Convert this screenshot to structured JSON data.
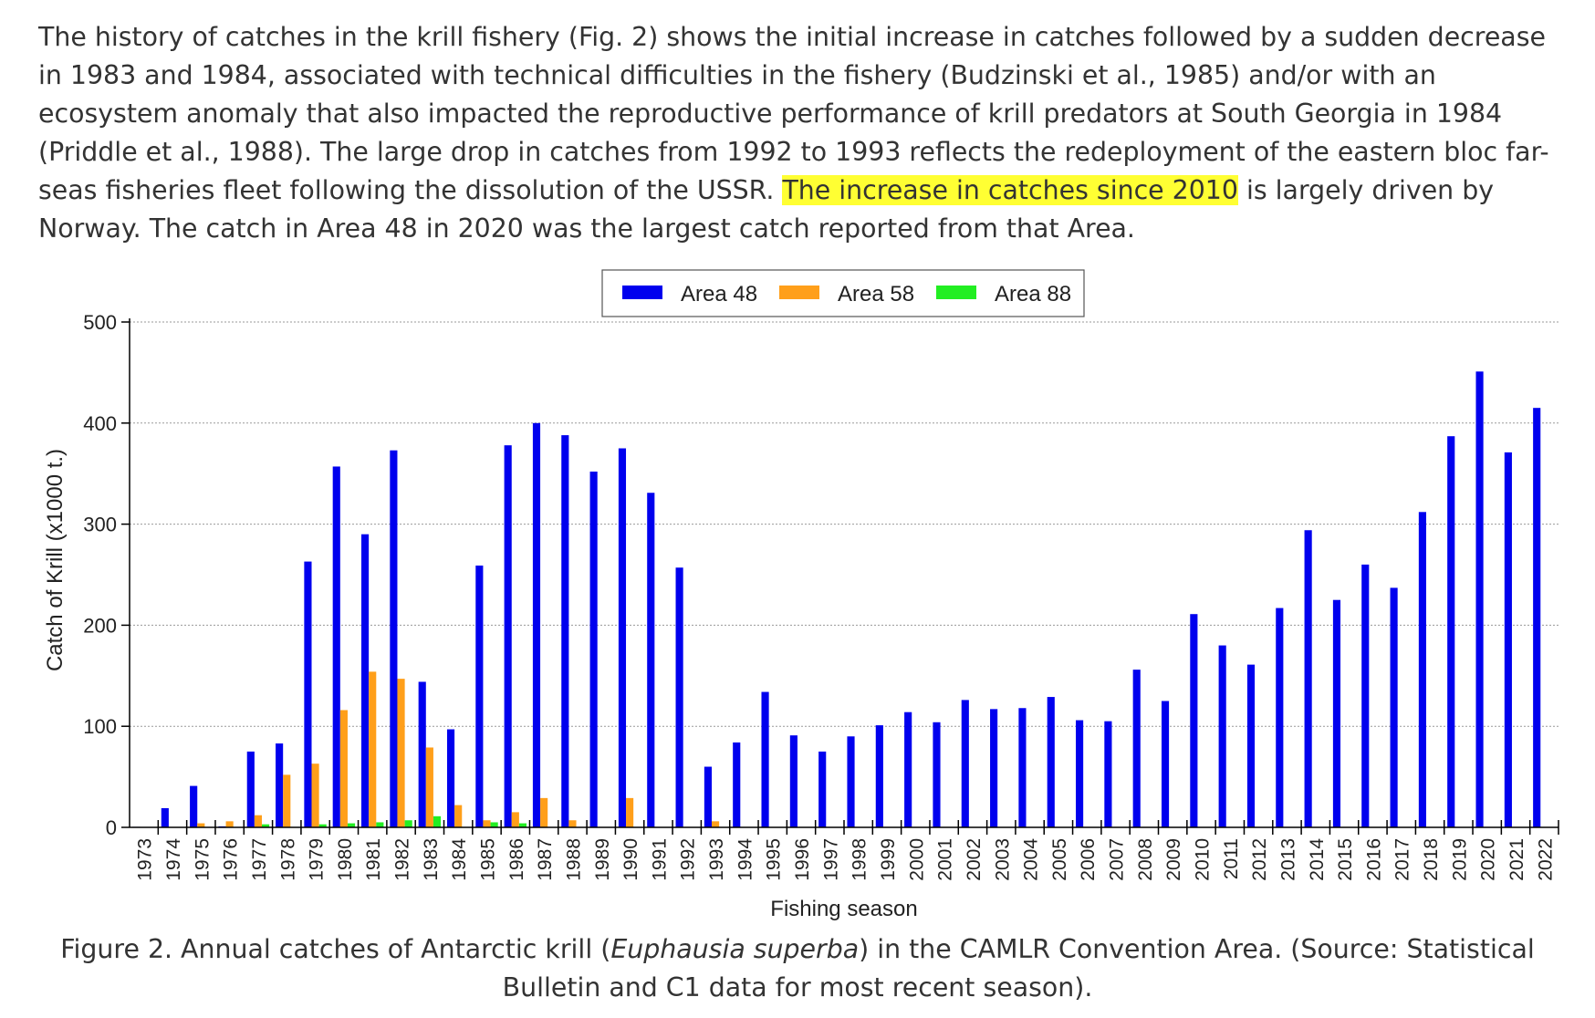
{
  "paragraph": {
    "seg1": "The history of catches in the krill fishery (Fig. 2) shows the initial increase in catches followed by a sudden decrease in 1983 and 1984, associated with technical difficulties in the fishery (Budzinski et al., 1985) and/or with an ecosystem anomaly that also impacted the reproductive performance of krill predators at South Georgia in 1984 (Priddle et al., 1988). The large drop in catches from 1992 to 1993 reflects the redeployment of the eastern bloc far-seas fisheries fleet following the dissolution of the USSR. ",
    "highlight": "The increase in catches since 2010",
    "seg2": " is largely driven by Norway. The catch in Area 48 in 2020 was the largest catch reported from that Area.",
    "highlight_color": "#ffff33"
  },
  "caption": {
    "prefix": "Figure 2. Annual catches of Antarctic krill (",
    "species": "Euphausia superba",
    "suffix": ") in the CAMLR Convention Area. (Source: Statistical Bulletin and C1 data for most recent season)."
  },
  "chart_data": {
    "type": "bar",
    "xlabel": "Fishing season",
    "ylabel": "Catch of Krill (x1000 t.)",
    "ylim": [
      0,
      500
    ],
    "yticks": [
      0,
      100,
      200,
      300,
      400,
      500
    ],
    "grid": true,
    "legend_position": "top-center",
    "categories": [
      "1973",
      "1974",
      "1975",
      "1976",
      "1977",
      "1978",
      "1979",
      "1980",
      "1981",
      "1982",
      "1983",
      "1984",
      "1985",
      "1986",
      "1987",
      "1988",
      "1989",
      "1990",
      "1991",
      "1992",
      "1993",
      "1994",
      "1995",
      "1996",
      "1997",
      "1998",
      "1999",
      "2000",
      "2001",
      "2002",
      "2003",
      "2004",
      "2005",
      "2006",
      "2007",
      "2008",
      "2009",
      "2010",
      "2011",
      "2012",
      "2013",
      "2014",
      "2015",
      "2016",
      "2017",
      "2018",
      "2019",
      "2020",
      "2021",
      "2022"
    ],
    "series": [
      {
        "name": "Area 48",
        "color": "#0000ee",
        "values": [
          0.5,
          19,
          41,
          1,
          75,
          83,
          263,
          357,
          290,
          373,
          144,
          97,
          259,
          378,
          400,
          388,
          352,
          375,
          331,
          257,
          60,
          84,
          134,
          91,
          75,
          90,
          101,
          114,
          104,
          126,
          117,
          118,
          129,
          106,
          105,
          156,
          125,
          211,
          180,
          161,
          217,
          294,
          225,
          260,
          237,
          312,
          387,
          451,
          371,
          415
        ]
      },
      {
        "name": "Area 58",
        "color": "#ff9f1a",
        "values": [
          0,
          0,
          4,
          6,
          12,
          52,
          63,
          116,
          154,
          147,
          79,
          22,
          7,
          15,
          29,
          7,
          0,
          29,
          0,
          0,
          6,
          0,
          0,
          0,
          0,
          0,
          0,
          0,
          0,
          0,
          0,
          0,
          0,
          0,
          0,
          0,
          0,
          0,
          0,
          0,
          0,
          0,
          0,
          0,
          0,
          0,
          0,
          0,
          0,
          0
        ]
      },
      {
        "name": "Area 88",
        "color": "#22ee22",
        "values": [
          0,
          0,
          0,
          0,
          3,
          0,
          3,
          4,
          5,
          7,
          11,
          0,
          5,
          4,
          0,
          0,
          0,
          0,
          0,
          0,
          0,
          0,
          0,
          0,
          0,
          0,
          0,
          0,
          0,
          0,
          0,
          0,
          0,
          0,
          0,
          0,
          0,
          0,
          0,
          0,
          0,
          0,
          0,
          0,
          0,
          0,
          0,
          0,
          0,
          0
        ]
      }
    ]
  }
}
